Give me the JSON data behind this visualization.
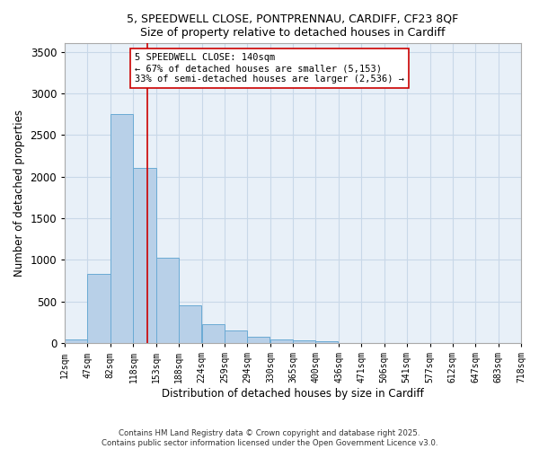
{
  "title_line1": "5, SPEEDWELL CLOSE, PONTPRENNAU, CARDIFF, CF23 8QF",
  "title_line2": "Size of property relative to detached houses in Cardiff",
  "xlabel": "Distribution of detached houses by size in Cardiff",
  "ylabel": "Number of detached properties",
  "bin_edges": [
    12,
    47,
    82,
    118,
    153,
    188,
    224,
    259,
    294,
    330,
    365,
    400,
    436,
    471,
    506,
    541,
    577,
    612,
    647,
    683,
    718
  ],
  "bar_heights": [
    50,
    830,
    2750,
    2100,
    1030,
    450,
    230,
    155,
    80,
    50,
    35,
    25,
    5,
    3,
    2,
    1,
    1,
    0,
    0,
    0
  ],
  "bar_color": "#b8d0e8",
  "bar_edgecolor": "#6aaad4",
  "property_sqm": 140,
  "vline_color": "#cc0000",
  "annotation_text": "5 SPEEDWELL CLOSE: 140sqm\n← 67% of detached houses are smaller (5,153)\n33% of semi-detached houses are larger (2,536) →",
  "annotation_box_edgecolor": "#cc0000",
  "annotation_box_facecolor": "#ffffff",
  "ylim": [
    0,
    3600
  ],
  "yticks": [
    0,
    500,
    1000,
    1500,
    2000,
    2500,
    3000,
    3500
  ],
  "grid_color": "#c8d8e8",
  "background_color": "#e8f0f8",
  "footer_line1": "Contains HM Land Registry data © Crown copyright and database right 2025.",
  "footer_line2": "Contains public sector information licensed under the Open Government Licence v3.0.",
  "tick_labels": [
    "12sqm",
    "47sqm",
    "82sqm",
    "118sqm",
    "153sqm",
    "188sqm",
    "224sqm",
    "259sqm",
    "294sqm",
    "330sqm",
    "365sqm",
    "400sqm",
    "436sqm",
    "471sqm",
    "506sqm",
    "541sqm",
    "577sqm",
    "612sqm",
    "647sqm",
    "683sqm",
    "718sqm"
  ]
}
